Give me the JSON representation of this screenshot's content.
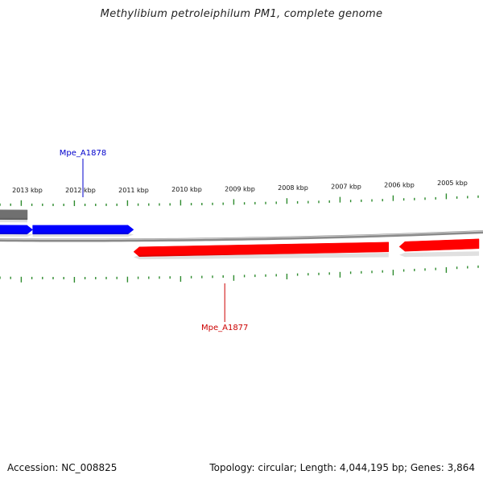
{
  "title": "Methylibium petroleiphilum PM1, complete genome",
  "footer": {
    "accession": "Accession: NC_008825",
    "summary": "Topology: circular; Length: 4,044,195 bp; Genes: 3,864"
  },
  "colors": {
    "tick": "#2e8b2e",
    "backbone": "#8a8a8a",
    "forward_gene": "#0000ff",
    "reverse_gene": "#ff0000",
    "other_gene": "#707070",
    "label_forward": "#0000cc",
    "label_reverse": "#cc0000"
  },
  "axis": {
    "unit": "kbp",
    "visible_range_kbp": [
      2004.5,
      2013.6
    ],
    "tick_labels_kbp": [
      2013,
      2012,
      2011,
      2010,
      2009,
      2008,
      2007,
      2006,
      2005
    ]
  },
  "genes": [
    {
      "strand": "forward",
      "start_kbp": 2012.9,
      "end_kbp": 2013.6,
      "color": "#0000ff"
    },
    {
      "strand": "forward",
      "start_kbp": 2011.0,
      "end_kbp": 2012.9,
      "color": "#0000ff",
      "label": "Mpe_A1878",
      "label_kbp": 2012.0
    },
    {
      "strand": "other",
      "start_kbp": 2013.0,
      "end_kbp": 2013.6,
      "color": "#707070"
    },
    {
      "strand": "reverse",
      "start_kbp": 2006.2,
      "end_kbp": 2011.0,
      "color": "#ff0000",
      "label": "Mpe_A1877",
      "label_kbp": 2009.3
    },
    {
      "strand": "reverse",
      "start_kbp": 2004.5,
      "end_kbp": 2006.0,
      "color": "#ff0000"
    }
  ]
}
